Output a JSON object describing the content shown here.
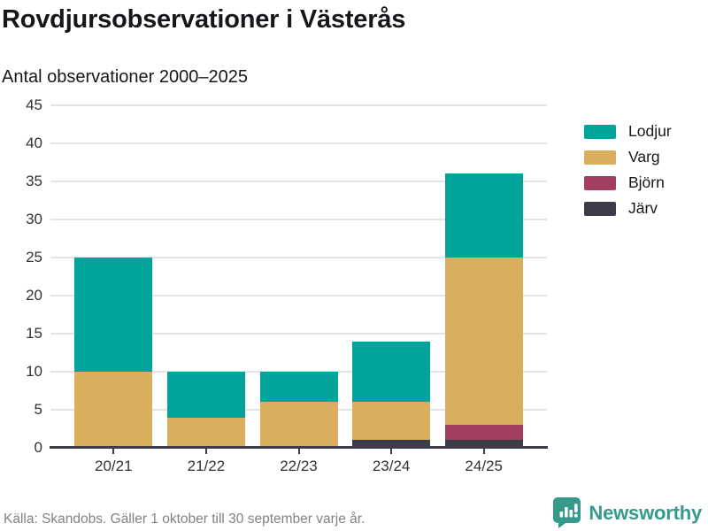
{
  "header": {
    "title": "Rovdjursobservationer i Västerås",
    "subtitle": "Antal observationer 2000–2025"
  },
  "chart_data": {
    "type": "bar",
    "stacked": true,
    "title": "Rovdjursobservationer i Västerås",
    "subtitle": "Antal observationer 2000–2025",
    "categories": [
      "20/21",
      "21/22",
      "22/23",
      "23/24",
      "24/25"
    ],
    "series": [
      {
        "name": "Lodjur",
        "color": "#00a49a",
        "values": [
          15,
          6,
          4,
          8,
          11
        ]
      },
      {
        "name": "Varg",
        "color": "#d9ae5f",
        "values": [
          10,
          4,
          6,
          5,
          22
        ]
      },
      {
        "name": "Björn",
        "color": "#a23f5f",
        "values": [
          0,
          0,
          0,
          0,
          2
        ]
      },
      {
        "name": "Järv",
        "color": "#3d3c49",
        "values": [
          0,
          0,
          0,
          1,
          1
        ]
      }
    ],
    "totals": [
      25,
      10,
      10,
      14,
      36
    ],
    "stack_order_bottom_to_top": [
      "Järv",
      "Björn",
      "Varg",
      "Lodjur"
    ],
    "ylim": [
      0,
      45
    ],
    "ytick_step": 5,
    "xlabel": "",
    "ylabel": "",
    "grid": true,
    "gridline_color": "#e4e4e4",
    "axis_color": "#3d3c49",
    "legend_position": "top-right"
  },
  "footer": {
    "source": "Källa: Skandobs. Gäller 1 oktober till 30 september varje år.",
    "brand": "Newsworthy",
    "brand_color": "#35998b",
    "brand_icon": "newsworthy-speech-bubble-bar-chart-icon"
  }
}
